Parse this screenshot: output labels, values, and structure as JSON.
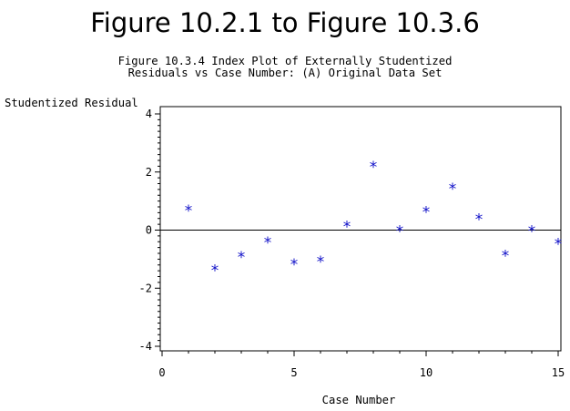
{
  "page_title": "Figure 10.2.1 to Figure 10.3.6",
  "chart_data": {
    "type": "scatter",
    "title": "Figure 10.3.4 Index Plot of Externally Studentized",
    "subtitle": "Residuals vs Case Number: (A) Original Data Set",
    "xlabel": "Case Number",
    "ylabel": "Studentized Residual",
    "xlim": [
      0,
      15
    ],
    "ylim": [
      -4,
      4
    ],
    "x_ticks": [
      0,
      5,
      10,
      15
    ],
    "x_tick_labels": [
      "0",
      "5",
      "10",
      "15"
    ],
    "y_ticks": [
      -4,
      -2,
      0,
      2,
      4
    ],
    "y_tick_labels": [
      "-4",
      "-2",
      "0",
      "2",
      "4"
    ],
    "reference_line": 0,
    "marker_symbol": "*",
    "marker_color": "#1010c8",
    "grid": false,
    "x": [
      1,
      2,
      3,
      4,
      5,
      6,
      7,
      8,
      9,
      10,
      11,
      12,
      13,
      14,
      15
    ],
    "y": [
      0.8,
      -1.25,
      -0.8,
      -0.3,
      -1.05,
      -0.95,
      0.25,
      2.3,
      0.1,
      0.75,
      1.55,
      0.5,
      -0.75,
      0.1,
      -0.35
    ]
  }
}
